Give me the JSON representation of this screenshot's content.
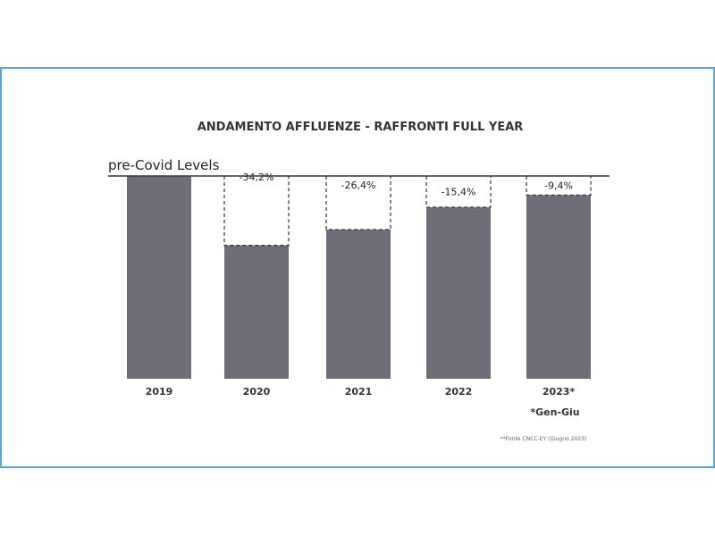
{
  "chart_data": {
    "type": "bar",
    "title": "ANDAMENTO AFFLUENZE - RAFFRONTI FULL YEAR",
    "reference_label": "pre-Covid Levels",
    "categories": [
      "2019",
      "2020",
      "2021",
      "2022",
      "2023*"
    ],
    "values": [
      100,
      65.8,
      73.6,
      84.6,
      90.6
    ],
    "change_labels": [
      "",
      "-34,2%",
      "-26,4%",
      "-15,4%",
      "-9,4%"
    ],
    "ylim": [
      0,
      100
    ],
    "footnote": "*Gen-Giu",
    "source": "**Fonte CNCC-EY (Giugno 2023)",
    "bar_color": "#6e6d78",
    "line_color": "#333333"
  }
}
